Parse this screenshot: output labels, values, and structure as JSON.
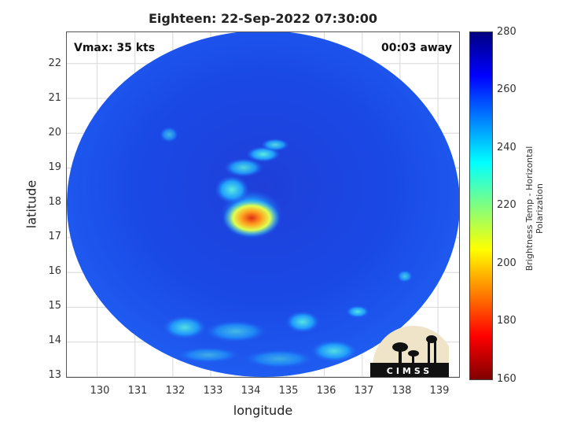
{
  "title": "Eighteen: 22-Sep-2022 07:30:00",
  "vmax_label": "Vmax: 35 kts",
  "time_away": "00:03 away",
  "xlabel": "longitude",
  "ylabel": "latitude",
  "colorbar": {
    "label": "Brightness Temp - Horizontal Polarization",
    "ticks": [
      "280",
      "260",
      "240",
      "220",
      "200",
      "180",
      "160"
    ],
    "range": [
      160,
      280
    ],
    "colors": [
      "#800000",
      "#ff0000",
      "#ff8000",
      "#ffff00",
      "#80ff80",
      "#00ffff",
      "#0080ff",
      "#0000ff",
      "#000080"
    ]
  },
  "map": {
    "xlim": [
      129.2,
      139.6
    ],
    "ylim": [
      12.95,
      22.9
    ],
    "xticks": [
      "130",
      "131",
      "132",
      "133",
      "134",
      "135",
      "136",
      "137",
      "138",
      "139"
    ],
    "yticks": [
      "22",
      "21",
      "20",
      "19",
      "18",
      "17",
      "16",
      "15",
      "14",
      "13"
    ],
    "grid": true,
    "storm_center": {
      "lon": 133.9,
      "lat": 17.6
    },
    "swath_center": {
      "lon": 134.3,
      "lat": 17.9
    }
  },
  "logo_text": "CIMSS"
}
